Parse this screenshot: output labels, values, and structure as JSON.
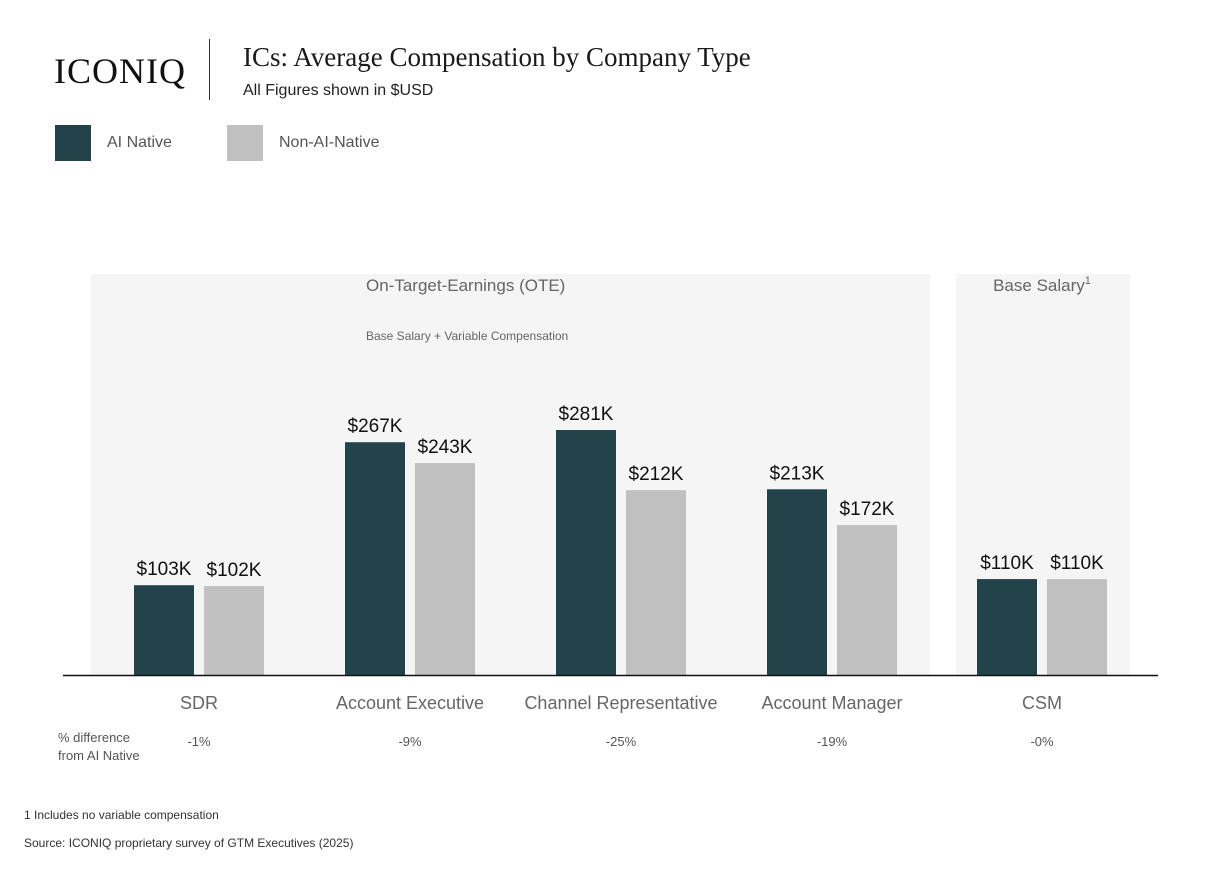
{
  "header": {
    "logo": "ICONIQ",
    "title": "ICs: Average Compensation by Company Type",
    "subtitle": "All Figures shown in $USD"
  },
  "legend": [
    {
      "label": "AI Native",
      "color": "#23434a"
    },
    {
      "label": "Non-AI-Native",
      "color": "#c0c0c0"
    }
  ],
  "chart_data": {
    "type": "bar",
    "categories": [
      "SDR",
      "Account Executive",
      "Channel Representative",
      "Account Manager",
      "CSM"
    ],
    "series": [
      {
        "name": "AI Native",
        "values": [
          103,
          267,
          281,
          213,
          110
        ],
        "labels": [
          "$103K",
          "$267K",
          "$281K",
          "$213K",
          "$110K"
        ],
        "color": "#23434a"
      },
      {
        "name": "Non-AI-Native",
        "values": [
          102,
          243,
          212,
          172,
          110
        ],
        "labels": [
          "$102K",
          "$243K",
          "$212K",
          "$172K",
          "$110K"
        ],
        "color": "#c0c0c0"
      }
    ],
    "panels": [
      {
        "title": "On-Target-Earnings (OTE)",
        "subtitle": "Base Salary + Variable Compensation",
        "categories": [
          "SDR",
          "Account Executive",
          "Channel Representative",
          "Account Manager"
        ]
      },
      {
        "title": "Base Salary",
        "superscript": "1",
        "subtitle": "",
        "categories": [
          "CSM"
        ]
      }
    ],
    "diff_row_label": [
      "% difference",
      "from AI Native"
    ],
    "differences": [
      "-1%",
      "-9%",
      "-25%",
      "-19%",
      "-0%"
    ],
    "ylim": [
      0,
      350
    ],
    "grid": false
  },
  "footnotes": {
    "note": "1 Includes no variable compensation",
    "source": "Source: ICONIQ proprietary survey of GTM Executives (2025)"
  }
}
